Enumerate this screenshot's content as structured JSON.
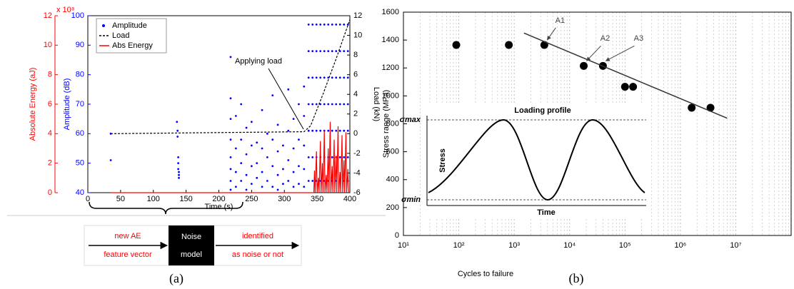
{
  "chart_data": [
    {
      "type": "scatter",
      "xlabel": "Time (s)",
      "ylabel": "Amplitude (dB)",
      "y2label": "Load (kN)",
      "y3label": "Absolute Energy (aJ)",
      "y3_multiplier": "x 10⁸",
      "annotation": "Applying load",
      "xlim": [
        0,
        400
      ],
      "xticks": [
        0,
        50,
        100,
        150,
        200,
        250,
        300,
        350,
        400
      ],
      "ylim": [
        40,
        100
      ],
      "yticks": [
        40,
        50,
        60,
        70,
        80,
        90,
        100
      ],
      "y2lim": [
        -6,
        12
      ],
      "y2ticks": [
        -6,
        -4,
        -2,
        0,
        2,
        4,
        6,
        8,
        10,
        12
      ],
      "y3lim": [
        0,
        12
      ],
      "y3ticks": [
        0,
        2,
        4,
        6,
        8,
        10,
        12
      ],
      "legend": "upper left",
      "series": [
        {
          "name": "Amplitude",
          "type": "scatter",
          "color": "#0000ff",
          "axis": "y",
          "x": [
            35,
            35,
            136,
            137,
            137,
            138,
            138,
            138,
            139,
            139,
            139,
            218,
            218,
            218,
            218,
            218,
            218,
            218,
            218,
            226,
            226,
            226,
            226,
            234,
            234,
            234,
            234,
            242,
            242,
            242,
            242,
            250,
            250,
            250,
            250,
            258,
            258,
            258,
            266,
            266,
            266,
            266,
            274,
            274,
            274,
            282,
            282,
            282,
            282,
            290,
            290,
            290,
            290,
            298,
            298,
            298,
            306,
            306,
            306,
            306,
            314,
            314,
            314,
            314,
            322,
            322,
            322,
            322,
            330,
            330,
            330,
            330,
            330,
            337,
            337,
            337,
            337,
            337,
            337,
            337,
            343,
            343,
            343,
            343,
            343,
            343,
            343,
            349,
            349,
            349,
            349,
            349,
            349,
            349,
            355,
            355,
            355,
            355,
            355,
            355,
            355,
            361,
            361,
            361,
            361,
            361,
            361,
            361,
            367,
            367,
            367,
            367,
            367,
            367,
            367,
            373,
            373,
            373,
            373,
            373,
            373,
            373,
            379,
            379,
            379,
            379,
            379,
            379,
            379,
            385,
            385,
            385,
            385,
            385,
            385,
            385,
            391,
            391,
            391,
            391,
            391,
            391,
            391,
            397,
            397,
            397,
            397,
            397,
            397,
            397
          ],
          "values": [
            60,
            51,
            64,
            61,
            59,
            52,
            50,
            48,
            47,
            46,
            45,
            86,
            72,
            65,
            58,
            52,
            48,
            44,
            41,
            66,
            55,
            47,
            42,
            70,
            58,
            50,
            44,
            62,
            53,
            46,
            41,
            64,
            56,
            49,
            43,
            57,
            50,
            45,
            68,
            55,
            47,
            42,
            60,
            52,
            44,
            73,
            58,
            49,
            42,
            63,
            54,
            46,
            41,
            56,
            48,
            43,
            75,
            61,
            51,
            44,
            65,
            55,
            47,
            42,
            70,
            58,
            49,
            43,
            76,
            66,
            56,
            48,
            42,
            97,
            88,
            79,
            70,
            61,
            52,
            44,
            97,
            88,
            79,
            70,
            61,
            52,
            44,
            97,
            88,
            79,
            70,
            61,
            52,
            44,
            97,
            88,
            79,
            70,
            61,
            52,
            44,
            97,
            88,
            79,
            70,
            61,
            52,
            44,
            97,
            88,
            79,
            70,
            61,
            52,
            44,
            97,
            88,
            79,
            70,
            61,
            52,
            44,
            97,
            88,
            79,
            70,
            61,
            52,
            44,
            97,
            88,
            79,
            70,
            61,
            52,
            44,
            97,
            88,
            79,
            70,
            61,
            52,
            44,
            97,
            88,
            79,
            70,
            61,
            52,
            44
          ]
        },
        {
          "name": "Load",
          "type": "line",
          "color": "#000000",
          "axis": "y2",
          "linestyle": "dashed",
          "x": [
            35,
            330,
            340,
            350,
            360,
            370,
            380,
            390,
            400
          ],
          "values": [
            0,
            0.2,
            0.8,
            2.5,
            4.2,
            6,
            7.8,
            9.7,
            11.6
          ]
        },
        {
          "name": "Abs Energy",
          "type": "line",
          "color": "#ff0000",
          "axis": "y3",
          "x": [
            35,
            345,
            346,
            347,
            349,
            350,
            352,
            353,
            355,
            356,
            358,
            359,
            361,
            362,
            364,
            365,
            367,
            368,
            370,
            371,
            373,
            374,
            376,
            377,
            379,
            380,
            382,
            383,
            385,
            386,
            388,
            389,
            391,
            392,
            394,
            395,
            397,
            398
          ],
          "values": [
            0,
            0,
            1.5,
            0,
            2.8,
            0,
            1,
            0,
            3.5,
            0,
            2,
            0,
            4.2,
            0,
            1.2,
            0,
            3,
            0,
            4.8,
            0,
            1.8,
            0,
            3.6,
            0,
            2.5,
            0,
            4.5,
            0,
            1.4,
            0,
            3.9,
            0,
            2.2,
            0,
            4.1,
            0,
            1.6,
            0
          ]
        }
      ]
    },
    {
      "type": "scatter",
      "xlabel": "Cycles to failure",
      "ylabel": "Stress range (MPa)",
      "xscale": "log",
      "grid": "x",
      "xlim": [
        10,
        100000000
      ],
      "xticks": [
        {
          "value": 10,
          "label": "10¹"
        },
        {
          "value": 100,
          "label": "10²"
        },
        {
          "value": 1000,
          "label": "10³"
        },
        {
          "value": 10000,
          "label": "10⁴"
        },
        {
          "value": 100000,
          "label": "10⁵"
        },
        {
          "value": 1000000,
          "label": "10⁶"
        },
        {
          "value": 10000000,
          "label": "10⁷"
        }
      ],
      "ylim": [
        0,
        1600
      ],
      "yticks": [
        0,
        200,
        400,
        600,
        800,
        1000,
        1200,
        1400,
        1600
      ],
      "annotations": [
        "A1",
        "A2",
        "A3"
      ],
      "series": [
        {
          "type": "scatter",
          "color": "#000000",
          "x": [
            90,
            800,
            3500,
            18000,
            40000,
            100000,
            140000,
            1600000,
            3500000
          ],
          "values": [
            1365,
            1365,
            1365,
            1215,
            1215,
            1065,
            1065,
            915,
            915
          ]
        },
        {
          "type": "line",
          "color": "#333333",
          "x": [
            1500,
            7000000
          ],
          "values": [
            1450,
            840
          ]
        }
      ],
      "inset": {
        "title": "Loading profile",
        "ylabel": "Stress",
        "xlabel": "Time",
        "max_label": "σmax",
        "min_label": "σmin"
      }
    }
  ],
  "diagram": {
    "input": [
      "new AE",
      "feature vector"
    ],
    "model": [
      "Noise",
      "model"
    ],
    "output": [
      "identified",
      "as noise or not"
    ]
  },
  "panels": [
    "(a)",
    "(b)"
  ]
}
